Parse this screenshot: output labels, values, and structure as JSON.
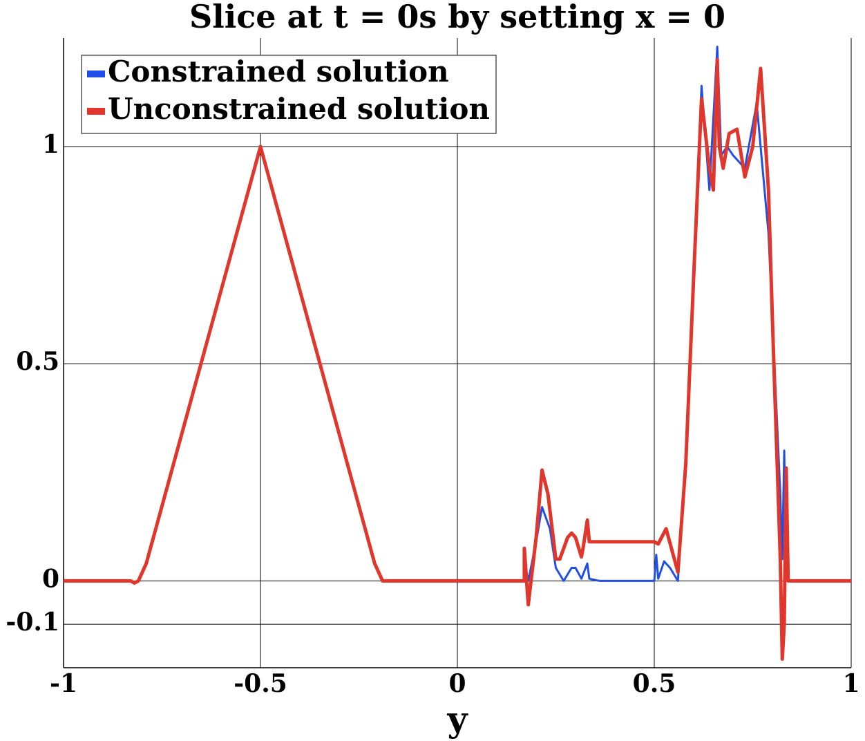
{
  "chart_data": {
    "type": "line",
    "title": "Slice at t = 0s by setting x = 0",
    "x_label": "y",
    "xlim": [
      -1,
      1
    ],
    "ylim": [
      -0.2,
      1.25
    ],
    "xticks": [
      -1,
      -0.5,
      0,
      0.5,
      1
    ],
    "yticks": [
      -0.1,
      0,
      0.5,
      1
    ],
    "grid": true,
    "legend": "upper left",
    "series": [
      {
        "name": "Constrained solution",
        "color": "#1f4fe8",
        "x": [
          -1,
          -0.83,
          -0.82,
          -0.81,
          -0.79,
          -0.5,
          -0.21,
          -0.19,
          0.17,
          0.175,
          0.18,
          0.2,
          0.215,
          0.235,
          0.25,
          0.27,
          0.29,
          0.3,
          0.315,
          0.33,
          0.335,
          0.36,
          0.5,
          0.505,
          0.51,
          0.525,
          0.54,
          0.56,
          0.58,
          0.6,
          0.62,
          0.64,
          0.66,
          0.67,
          0.685,
          0.7,
          0.73,
          0.76,
          0.79,
          0.82,
          0.825,
          0.83,
          0.835,
          1
        ],
        "values": [
          0,
          0,
          -0.005,
          0,
          0.04,
          1,
          0.04,
          0,
          0,
          0.02,
          0,
          0.09,
          0.17,
          0.12,
          0.03,
          0,
          0.03,
          0.03,
          0.005,
          0.04,
          0.005,
          0,
          0,
          0.06,
          0.005,
          0.045,
          0.03,
          0,
          0.27,
          0.7,
          1.14,
          0.9,
          1.23,
          0.98,
          1.0,
          0.98,
          0.95,
          1.1,
          0.8,
          0.2,
          0.05,
          0.3,
          0,
          0
        ]
      },
      {
        "name": "Unconstrained solution",
        "color": "#e0362c",
        "x": [
          -1,
          -0.83,
          -0.82,
          -0.81,
          -0.79,
          -0.5,
          -0.21,
          -0.19,
          0.17,
          0.17,
          0.18,
          0.2,
          0.215,
          0.23,
          0.25,
          0.26,
          0.28,
          0.29,
          0.3,
          0.315,
          0.32,
          0.33,
          0.335,
          0.5,
          0.51,
          0.53,
          0.56,
          0.58,
          0.6,
          0.62,
          0.64,
          0.65,
          0.66,
          0.665,
          0.675,
          0.69,
          0.71,
          0.73,
          0.75,
          0.77,
          0.79,
          0.8,
          0.82,
          0.825,
          0.83,
          0.835,
          0.84,
          1
        ],
        "values": [
          0,
          0,
          -0.005,
          0,
          0.04,
          1,
          0.04,
          0,
          0,
          0.075,
          -0.055,
          0.1,
          0.255,
          0.2,
          0.05,
          0.05,
          0.1,
          0.11,
          0.1,
          0.055,
          0.08,
          0.14,
          0.09,
          0.09,
          0.085,
          0.12,
          0.02,
          0.27,
          0.7,
          1.11,
          0.95,
          0.9,
          1.2,
          1.0,
          0.95,
          1.03,
          1.04,
          0.93,
          1.0,
          1.18,
          0.9,
          0.6,
          0.05,
          -0.18,
          -0.1,
          0.26,
          0,
          0
        ]
      }
    ]
  }
}
